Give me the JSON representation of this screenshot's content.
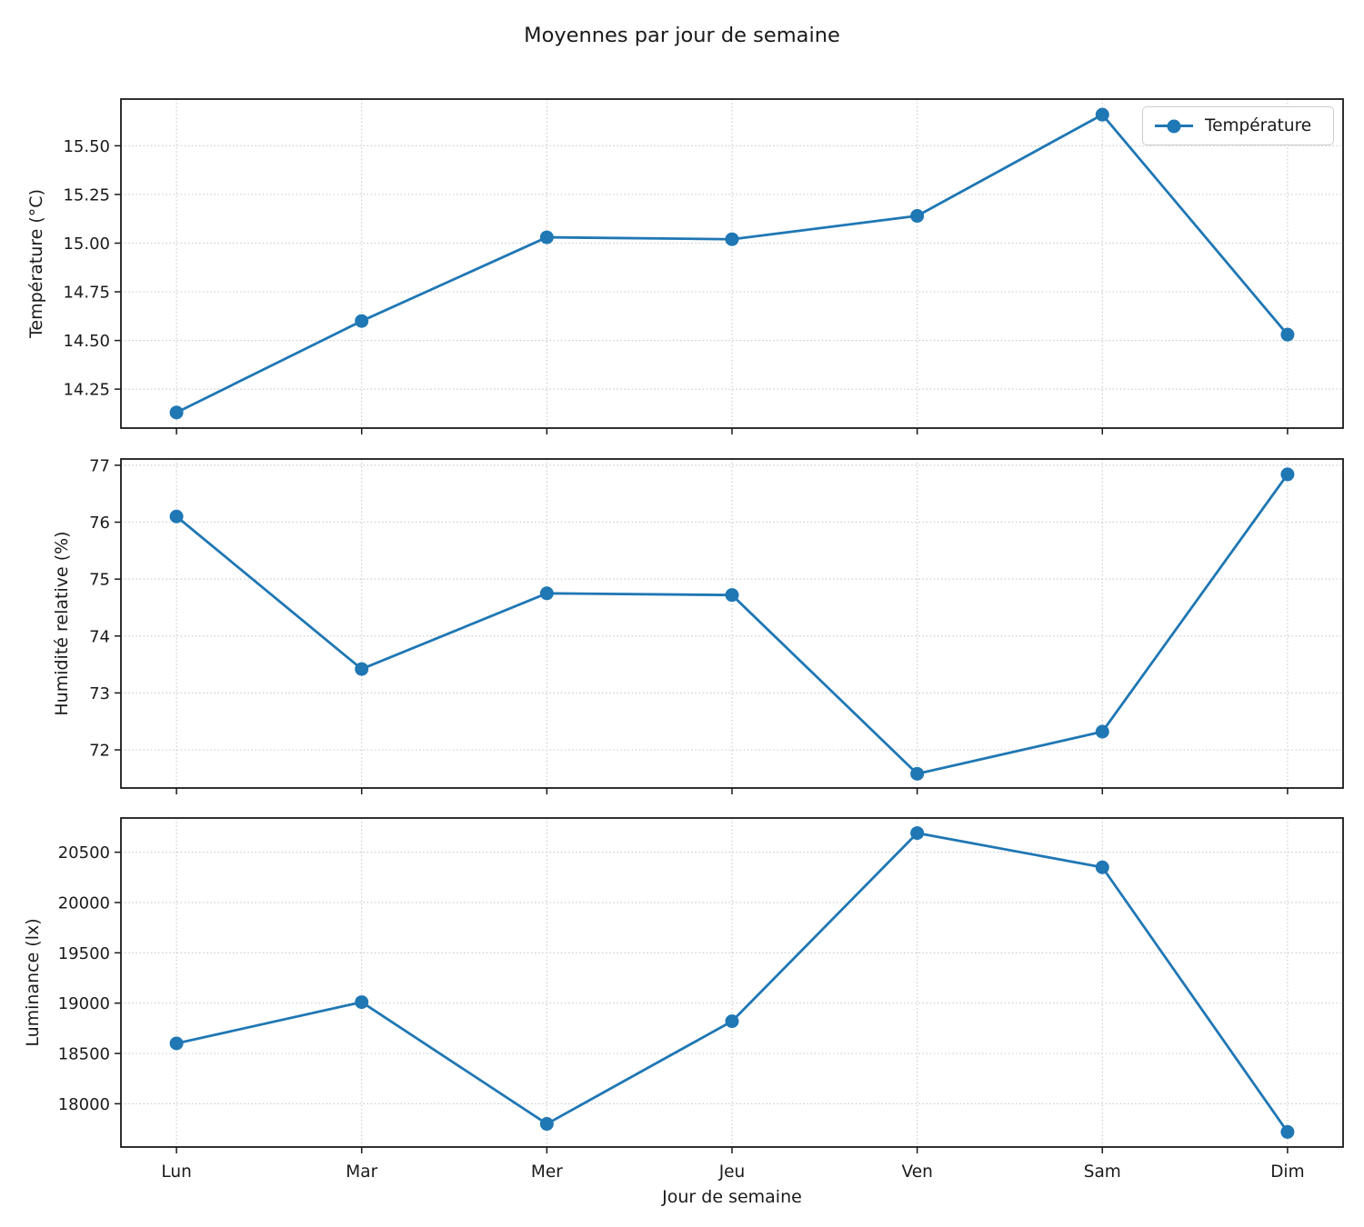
{
  "title": "Moyennes par jour de semaine",
  "xlabel": "Jour de semaine",
  "colors": {
    "line": "#1f77b4",
    "grid": "#cdcdcd",
    "axis": "#1a1a1a",
    "background": "#ffffff"
  },
  "chart_data": [
    {
      "type": "line",
      "ylabel": "Température (°C)",
      "categories": [
        "Lun",
        "Mar",
        "Mer",
        "Jeu",
        "Ven",
        "Sam",
        "Dim"
      ],
      "series": [
        {
          "name": "Température",
          "values": [
            14.13,
            14.6,
            15.03,
            15.02,
            15.14,
            15.66,
            14.53
          ]
        }
      ],
      "yticks": [
        14.25,
        14.5,
        14.75,
        15.0,
        15.25,
        15.5
      ],
      "ytick_labels": [
        "14.25",
        "14.50",
        "14.75",
        "15.00",
        "15.25",
        "15.50"
      ],
      "ylim": [
        14.05,
        15.74
      ],
      "grid": true,
      "legend_position": "upper right",
      "show_x_tick_labels": false
    },
    {
      "type": "line",
      "ylabel": "Humidité relative (%)",
      "categories": [
        "Lun",
        "Mar",
        "Mer",
        "Jeu",
        "Ven",
        "Sam",
        "Dim"
      ],
      "series": [
        {
          "name": "Humidité relative",
          "values": [
            76.1,
            73.42,
            74.75,
            74.72,
            71.58,
            72.32,
            76.84
          ]
        }
      ],
      "yticks": [
        72,
        73,
        74,
        75,
        76,
        77
      ],
      "ytick_labels": [
        "72",
        "73",
        "74",
        "75",
        "76",
        "77"
      ],
      "ylim": [
        71.33,
        77.11
      ],
      "grid": true,
      "legend_position": null,
      "show_x_tick_labels": false
    },
    {
      "type": "line",
      "ylabel": "Luminance (lx)",
      "categories": [
        "Lun",
        "Mar",
        "Mer",
        "Jeu",
        "Ven",
        "Sam",
        "Dim"
      ],
      "series": [
        {
          "name": "Luminance",
          "values": [
            18600,
            19010,
            17800,
            18820,
            20690,
            20350,
            17720
          ]
        }
      ],
      "yticks": [
        18000,
        18500,
        19000,
        19500,
        20000,
        20500
      ],
      "ytick_labels": [
        "18000",
        "18500",
        "19000",
        "19500",
        "20000",
        "20500"
      ],
      "ylim": [
        17570,
        20840
      ],
      "grid": true,
      "legend_position": null,
      "show_x_tick_labels": true
    }
  ]
}
